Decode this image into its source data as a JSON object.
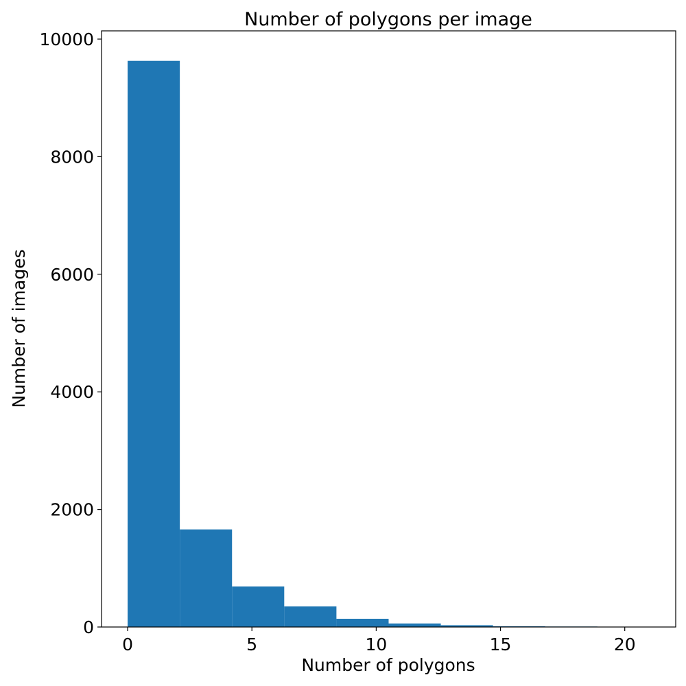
{
  "chart_data": {
    "type": "bar",
    "title": "Number of polygons per image",
    "xlabel": "Number of polygons",
    "ylabel": "Number of images",
    "xlim": [
      -1.05,
      22.05
    ],
    "ylim": [
      0,
      10140
    ],
    "xticks": [
      0,
      5,
      10,
      15,
      20
    ],
    "yticks": [
      0,
      2000,
      4000,
      6000,
      8000,
      10000
    ],
    "bins": [
      {
        "start": 0.0,
        "end": 2.1,
        "value": 9630
      },
      {
        "start": 2.1,
        "end": 4.2,
        "value": 1660
      },
      {
        "start": 4.2,
        "end": 6.3,
        "value": 690
      },
      {
        "start": 6.3,
        "end": 8.4,
        "value": 350
      },
      {
        "start": 8.4,
        "end": 10.5,
        "value": 140
      },
      {
        "start": 10.5,
        "end": 12.6,
        "value": 60
      },
      {
        "start": 12.6,
        "end": 14.7,
        "value": 30
      },
      {
        "start": 14.7,
        "end": 16.8,
        "value": 12
      },
      {
        "start": 16.8,
        "end": 18.9,
        "value": 8
      },
      {
        "start": 18.9,
        "end": 21.0,
        "value": 5
      }
    ],
    "bar_color": "#1f77b4",
    "grid": false,
    "legend": "none"
  }
}
